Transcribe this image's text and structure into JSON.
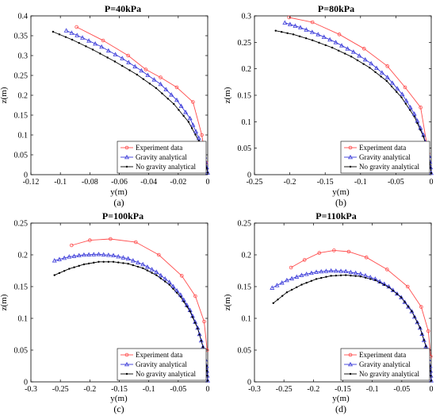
{
  "figure": {
    "legend": {
      "placement": "bottom-right",
      "entries": [
        {
          "key": "exp",
          "label": "Experiment data",
          "color": "#ff4d4d",
          "marker": "circle"
        },
        {
          "key": "grav",
          "label": "Gravity analytical",
          "color": "#3a3ad9",
          "marker": "triangle"
        },
        {
          "key": "nograv",
          "label": "No gravity analytical",
          "color": "#000000",
          "marker": "dot"
        }
      ]
    }
  },
  "chart_data": [
    {
      "type": "line",
      "title": "P=40kPa",
      "caption": "(a)",
      "xlabel": "y(m)",
      "ylabel": "z(m)",
      "xlim": [
        -0.12,
        0
      ],
      "ylim": [
        0,
        0.4
      ],
      "xticks": [
        -0.12,
        -0.1,
        -0.08,
        -0.06,
        -0.04,
        -0.02,
        0
      ],
      "xtick_labels": [
        "-0.12",
        "-0.1",
        "-0.08",
        "-0.06",
        "-0.04",
        "-0.02",
        "0"
      ],
      "yticks": [
        0,
        0.05,
        0.1,
        0.15,
        0.2,
        0.25,
        0.3,
        0.35,
        0.4
      ],
      "ytick_labels": [
        "0",
        "0.05",
        "0.1",
        "0.15",
        "0.2",
        "0.25",
        "0.3",
        "0.35",
        "0.4"
      ],
      "series": [
        {
          "name": "Experiment data",
          "key": "exp",
          "x": [
            -0.089,
            -0.071,
            -0.054,
            -0.042,
            -0.032,
            -0.021,
            -0.01,
            -0.004,
            -0.001
          ],
          "y": [
            0.372,
            0.338,
            0.3,
            0.265,
            0.245,
            0.22,
            0.183,
            0.1,
            0.03
          ]
        },
        {
          "name": "Gravity analytical",
          "key": "grav",
          "x": [
            -0.096,
            -0.085,
            -0.072,
            -0.058,
            -0.045,
            -0.032,
            -0.021,
            -0.012,
            -0.006,
            -0.002,
            0
          ],
          "y": [
            0.363,
            0.345,
            0.322,
            0.293,
            0.262,
            0.228,
            0.188,
            0.142,
            0.092,
            0.045,
            0.005
          ]
        },
        {
          "name": "No gravity analytical",
          "key": "nograv",
          "x": [
            -0.105,
            -0.092,
            -0.078,
            -0.063,
            -0.048,
            -0.035,
            -0.023,
            -0.013,
            -0.006,
            -0.002,
            0
          ],
          "y": [
            0.36,
            0.34,
            0.315,
            0.285,
            0.252,
            0.218,
            0.178,
            0.133,
            0.085,
            0.04,
            0.005
          ]
        }
      ]
    },
    {
      "type": "line",
      "title": "P=80kPa",
      "caption": "(b)",
      "xlabel": "y(m)",
      "ylabel": "z(m)",
      "xlim": [
        -0.25,
        0
      ],
      "ylim": [
        0,
        0.3
      ],
      "xticks": [
        -0.25,
        -0.2,
        -0.15,
        -0.1,
        -0.05,
        0
      ],
      "xtick_labels": [
        "-0.25",
        "-0.2",
        "-0.15",
        "-0.1",
        "-0.05",
        "0"
      ],
      "yticks": [
        0,
        0.05,
        0.1,
        0.15,
        0.2,
        0.25,
        0.3
      ],
      "ytick_labels": [
        "0",
        "0.05",
        "0.1",
        "0.15",
        "0.2",
        "0.25",
        "0.3"
      ],
      "series": [
        {
          "name": "Experiment data",
          "key": "exp",
          "x": [
            -0.201,
            -0.168,
            -0.13,
            -0.095,
            -0.062,
            -0.037,
            -0.015,
            -0.004
          ],
          "y": [
            0.297,
            0.288,
            0.265,
            0.238,
            0.205,
            0.165,
            0.127,
            0.04
          ]
        },
        {
          "name": "Gravity analytical",
          "key": "grav",
          "x": [
            -0.207,
            -0.185,
            -0.16,
            -0.135,
            -0.11,
            -0.085,
            -0.062,
            -0.041,
            -0.024,
            -0.011,
            -0.003,
            0
          ],
          "y": [
            0.287,
            0.278,
            0.265,
            0.25,
            0.232,
            0.21,
            0.184,
            0.152,
            0.115,
            0.075,
            0.035,
            0.003
          ]
        },
        {
          "name": "No gravity analytical",
          "key": "nograv",
          "x": [
            -0.22,
            -0.195,
            -0.168,
            -0.14,
            -0.113,
            -0.087,
            -0.063,
            -0.042,
            -0.024,
            -0.011,
            -0.003,
            0
          ],
          "y": [
            0.272,
            0.265,
            0.254,
            0.24,
            0.223,
            0.202,
            0.177,
            0.146,
            0.11,
            0.072,
            0.033,
            0.003
          ]
        }
      ]
    },
    {
      "type": "line",
      "title": "P=100kPa",
      "caption": "(c)",
      "xlabel": "y(m)",
      "ylabel": "z(m)",
      "xlim": [
        -0.3,
        0
      ],
      "ylim": [
        0,
        0.25
      ],
      "xticks": [
        -0.3,
        -0.25,
        -0.2,
        -0.15,
        -0.1,
        -0.05,
        0
      ],
      "xtick_labels": [
        "-0.3",
        "-0.25",
        "-0.2",
        "-0.15",
        "-0.1",
        "-0.05",
        "0"
      ],
      "yticks": [
        0,
        0.05,
        0.1,
        0.15,
        0.2,
        0.25
      ],
      "ytick_labels": [
        "0",
        "0.05",
        "0.1",
        "0.15",
        "0.2",
        "0.25"
      ],
      "series": [
        {
          "name": "Experiment data",
          "key": "exp",
          "x": [
            -0.231,
            -0.2,
            -0.165,
            -0.122,
            -0.083,
            -0.044,
            -0.021,
            -0.006,
            -0.001
          ],
          "y": [
            0.215,
            0.223,
            0.225,
            0.22,
            0.2,
            0.167,
            0.135,
            0.095,
            0.05
          ]
        },
        {
          "name": "Gravity analytical",
          "key": "grav",
          "x": [
            -0.26,
            -0.235,
            -0.21,
            -0.185,
            -0.16,
            -0.135,
            -0.11,
            -0.087,
            -0.065,
            -0.046,
            -0.03,
            -0.017,
            -0.008,
            -0.002,
            0
          ],
          "y": [
            0.191,
            0.197,
            0.2,
            0.201,
            0.199,
            0.194,
            0.185,
            0.173,
            0.157,
            0.137,
            0.113,
            0.085,
            0.055,
            0.025,
            0.002
          ]
        },
        {
          "name": "No gravity analytical",
          "key": "nograv",
          "x": [
            -0.26,
            -0.235,
            -0.21,
            -0.185,
            -0.16,
            -0.135,
            -0.11,
            -0.087,
            -0.065,
            -0.046,
            -0.03,
            -0.017,
            -0.008,
            -0.002,
            0
          ],
          "y": [
            0.168,
            0.178,
            0.185,
            0.189,
            0.189,
            0.186,
            0.179,
            0.168,
            0.153,
            0.134,
            0.111,
            0.084,
            0.055,
            0.025,
            0.002
          ]
        }
      ]
    },
    {
      "type": "line",
      "title": "P=110kPa",
      "caption": "(d)",
      "xlabel": "y(m)",
      "ylabel": "z(m)",
      "xlim": [
        -0.3,
        0
      ],
      "ylim": [
        0,
        0.25
      ],
      "xticks": [
        -0.3,
        -0.25,
        -0.2,
        -0.15,
        -0.1,
        -0.05,
        0
      ],
      "xtick_labels": [
        "-0.3",
        "-0.25",
        "-0.2",
        "-0.15",
        "-0.1",
        "-0.05",
        "0"
      ],
      "yticks": [
        0,
        0.05,
        0.1,
        0.15,
        0.2,
        0.25
      ],
      "ytick_labels": [
        "0",
        "0.05",
        "0.1",
        "0.15",
        "0.2",
        "0.25"
      ],
      "series": [
        {
          "name": "Experiment data",
          "key": "exp",
          "x": [
            -0.238,
            -0.215,
            -0.19,
            -0.165,
            -0.14,
            -0.11,
            -0.075,
            -0.04,
            -0.017,
            -0.005,
            -0.001
          ],
          "y": [
            0.18,
            0.192,
            0.203,
            0.207,
            0.205,
            0.196,
            0.177,
            0.15,
            0.118,
            0.08,
            0.04
          ]
        },
        {
          "name": "Gravity analytical",
          "key": "grav",
          "x": [
            -0.27,
            -0.245,
            -0.22,
            -0.195,
            -0.17,
            -0.145,
            -0.12,
            -0.095,
            -0.072,
            -0.051,
            -0.033,
            -0.019,
            -0.009,
            -0.002,
            0
          ],
          "y": [
            0.148,
            0.16,
            0.168,
            0.173,
            0.175,
            0.174,
            0.17,
            0.162,
            0.15,
            0.133,
            0.111,
            0.085,
            0.056,
            0.025,
            0.002
          ]
        },
        {
          "name": "No gravity analytical",
          "key": "nograv",
          "x": [
            -0.268,
            -0.245,
            -0.22,
            -0.195,
            -0.17,
            -0.145,
            -0.12,
            -0.095,
            -0.072,
            -0.051,
            -0.033,
            -0.019,
            -0.009,
            -0.002,
            0
          ],
          "y": [
            0.124,
            0.141,
            0.153,
            0.162,
            0.167,
            0.168,
            0.166,
            0.16,
            0.149,
            0.133,
            0.111,
            0.085,
            0.056,
            0.025,
            0.002
          ]
        }
      ]
    }
  ]
}
